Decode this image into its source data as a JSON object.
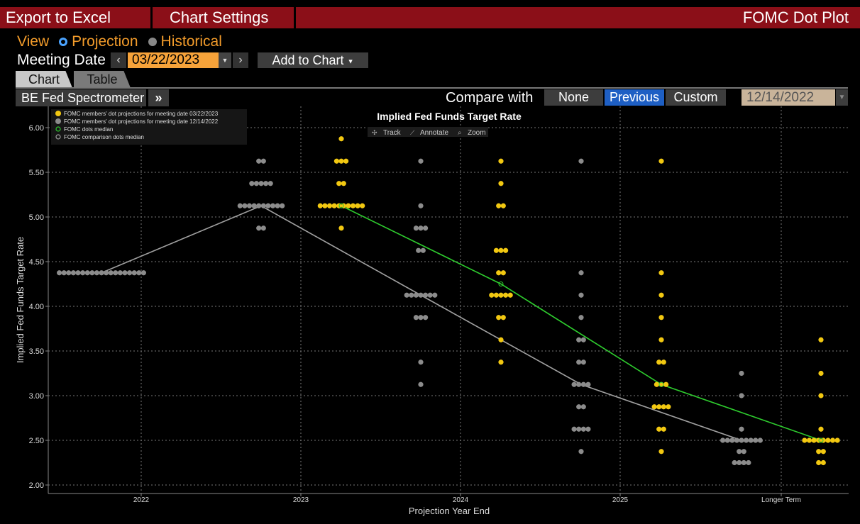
{
  "topbar": {
    "export_label": "Export to Excel",
    "settings_label": "Chart Settings",
    "title": "FOMC Dot Plot"
  },
  "view": {
    "label": "View",
    "projection_label": "Projection",
    "historical_label": "Historical",
    "selected": "Projection"
  },
  "meeting": {
    "label": "Meeting Date",
    "date": "03/22/2023",
    "add_to_chart_label": "Add to Chart"
  },
  "tabs": [
    {
      "label": "Chart",
      "active": true
    },
    {
      "label": "Table",
      "active": false
    }
  ],
  "toolbar": {
    "spectrometer_label": "BE Fed Spectrometer",
    "expand_icon": "double-chevron-right-icon",
    "compare_label": "Compare with",
    "compare_options": [
      "None",
      "Previous",
      "Custom"
    ],
    "compare_selected": "Previous",
    "compare_date": "12/14/2022"
  },
  "chart_tools": {
    "track_label": "Track",
    "annotate_label": "Annotate",
    "zoom_label": "Zoom"
  },
  "colors": {
    "current_dots": "#f2c811",
    "comparison_dots": "#8c8c8c",
    "median_line": "#2ecc2e",
    "comparison_line": "#a0a0a0",
    "brand_red": "#8b0f18",
    "accent_orange": "#f39c2b",
    "selected_blue": "#1e5fc4"
  },
  "chart_data": {
    "type": "scatter",
    "title": "Implied Fed Funds Target Rate",
    "xlabel": "Projection Year End",
    "ylabel": "Implied Fed Funds Target Rate",
    "categories": [
      "2022",
      "2023",
      "2024",
      "2025",
      "Longer Term"
    ],
    "ylim": [
      2.0,
      6.0
    ],
    "yticks": [
      "6.00",
      "5.50",
      "5.00",
      "4.50",
      "4.00",
      "3.50",
      "3.00",
      "2.50",
      "2.00"
    ],
    "grid": true,
    "legend_position": "top-left",
    "legend": [
      "FOMC members' dot projections for meeting date 03/22/2023",
      "FOMC members' dot projections for meeting date 12/14/2022",
      "FOMC dots median",
      "FOMC comparison dots median"
    ],
    "series": [
      {
        "name": "FOMC members' dot projections for meeting date 03/22/2023",
        "kind": "dots",
        "dots": {
          "2023": [
            [
              5.875,
              1
            ],
            [
              5.625,
              3
            ],
            [
              5.375,
              2
            ],
            [
              5.125,
              10
            ],
            [
              4.875,
              1
            ]
          ],
          "2024": [
            [
              5.625,
              1
            ],
            [
              5.375,
              1
            ],
            [
              5.125,
              2
            ],
            [
              4.625,
              3
            ],
            [
              4.375,
              2
            ],
            [
              4.125,
              5
            ],
            [
              3.875,
              2
            ],
            [
              3.625,
              1
            ],
            [
              3.375,
              1
            ]
          ],
          "2025": [
            [
              5.625,
              1
            ],
            [
              4.375,
              1
            ],
            [
              4.125,
              1
            ],
            [
              3.875,
              1
            ],
            [
              3.625,
              1
            ],
            [
              3.375,
              2
            ],
            [
              3.125,
              3
            ],
            [
              2.875,
              4
            ],
            [
              2.625,
              2
            ],
            [
              2.375,
              1
            ]
          ],
          "Longer Term": [
            [
              3.625,
              1
            ],
            [
              3.25,
              1
            ],
            [
              3.0,
              1
            ],
            [
              2.625,
              1
            ],
            [
              2.5,
              8
            ],
            [
              2.375,
              2
            ],
            [
              2.25,
              2
            ]
          ]
        }
      },
      {
        "name": "FOMC members' dot projections for meeting date 12/14/2022",
        "kind": "dots",
        "dots": {
          "2022": [
            [
              4.375,
              19
            ]
          ],
          "2023": [
            [
              5.625,
              2
            ],
            [
              5.375,
              5
            ],
            [
              5.125,
              10
            ],
            [
              4.875,
              2
            ]
          ],
          "2024": [
            [
              5.625,
              1
            ],
            [
              5.125,
              1
            ],
            [
              4.875,
              3
            ],
            [
              4.625,
              2
            ],
            [
              4.125,
              7
            ],
            [
              3.875,
              3
            ],
            [
              3.375,
              1
            ],
            [
              3.125,
              1
            ]
          ],
          "2025": [
            [
              5.625,
              1
            ],
            [
              4.375,
              1
            ],
            [
              4.125,
              1
            ],
            [
              3.875,
              1
            ],
            [
              3.625,
              2
            ],
            [
              3.375,
              2
            ],
            [
              3.125,
              4
            ],
            [
              2.875,
              2
            ],
            [
              2.625,
              4
            ],
            [
              2.375,
              1
            ]
          ],
          "Longer Term": [
            [
              3.25,
              1
            ],
            [
              3.0,
              1
            ],
            [
              2.625,
              1
            ],
            [
              2.5,
              9
            ],
            [
              2.375,
              2
            ],
            [
              2.25,
              4
            ]
          ]
        }
      },
      {
        "name": "FOMC dots median",
        "kind": "line",
        "points": [
          [
            "2023",
            5.125
          ],
          [
            "2024",
            4.25
          ],
          [
            "2025",
            3.125
          ],
          [
            "Longer Term",
            2.5
          ]
        ]
      },
      {
        "name": "FOMC comparison dots median",
        "kind": "line",
        "points": [
          [
            "2022",
            4.375
          ],
          [
            "2023",
            5.125
          ],
          [
            "2024",
            4.125
          ],
          [
            "2025",
            3.125
          ],
          [
            "Longer Term",
            2.5
          ]
        ]
      }
    ]
  }
}
